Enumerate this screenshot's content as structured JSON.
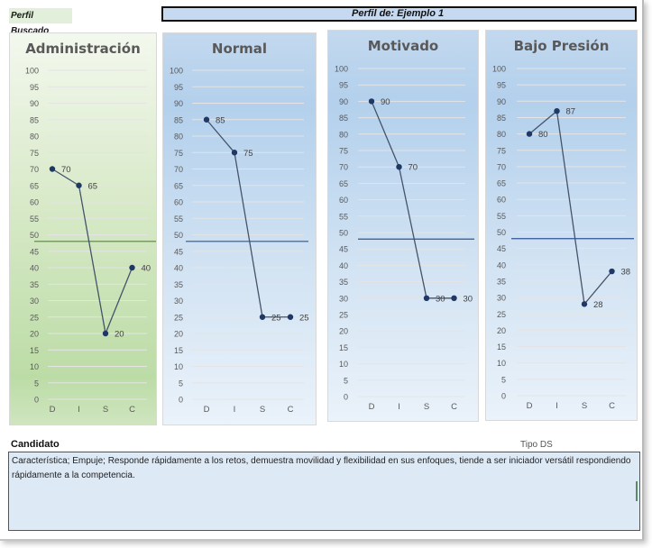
{
  "header": {
    "perfil_buscado": "Perfil Buscado",
    "perfil_de": "Perfil de: Ejemplo 1"
  },
  "colors": {
    "series": "#1f3864",
    "line": "#44546a",
    "ref_green": "#4e8a2c",
    "ref_blue": "#2f5597",
    "grid": "#e4e4e4",
    "tick": "#595959"
  },
  "chart_data": [
    {
      "type": "line",
      "title": "Administración",
      "categories": [
        "D",
        "I",
        "S",
        "C"
      ],
      "values": [
        70,
        65,
        20,
        40
      ],
      "data_labels": [
        "70",
        "65",
        "20",
        "40"
      ],
      "ylim": [
        0,
        100
      ],
      "yticks": [
        "0",
        "5",
        "10",
        "15",
        "20",
        "25",
        "30",
        "35",
        "40",
        "45",
        "50",
        "55",
        "60",
        "65",
        "70",
        "75",
        "80",
        "85",
        "90",
        "95",
        "100"
      ],
      "reference_line": 48,
      "theme": "green",
      "grid": true
    },
    {
      "type": "line",
      "title": "Normal",
      "categories": [
        "D",
        "I",
        "S",
        "C"
      ],
      "values": [
        85,
        75,
        25,
        25
      ],
      "data_labels": [
        "85",
        "75",
        "25",
        "25"
      ],
      "ylim": [
        0,
        100
      ],
      "yticks": [
        "0",
        "5",
        "10",
        "15",
        "20",
        "25",
        "30",
        "35",
        "40",
        "45",
        "50",
        "55",
        "60",
        "65",
        "70",
        "75",
        "80",
        "85",
        "90",
        "95",
        "100"
      ],
      "reference_line": 48,
      "theme": "blue",
      "grid": true
    },
    {
      "type": "line",
      "title": "Motivado",
      "categories": [
        "D",
        "I",
        "S",
        "C"
      ],
      "values": [
        90,
        70,
        30,
        30
      ],
      "data_labels": [
        "90",
        "70",
        "30",
        "30"
      ],
      "ylim": [
        0,
        100
      ],
      "yticks": [
        "0",
        "5",
        "10",
        "15",
        "20",
        "25",
        "30",
        "35",
        "40",
        "45",
        "50",
        "55",
        "60",
        "65",
        "70",
        "75",
        "80",
        "85",
        "90",
        "95",
        "100"
      ],
      "reference_line": 48,
      "theme": "blue",
      "grid": true
    },
    {
      "type": "line",
      "title": "Bajo Presión",
      "categories": [
        "D",
        "I",
        "S",
        "C"
      ],
      "values": [
        80,
        87,
        28,
        38
      ],
      "data_labels": [
        "80",
        "87",
        "28",
        "38"
      ],
      "ylim": [
        0,
        100
      ],
      "yticks": [
        "0",
        "5",
        "10",
        "15",
        "20",
        "25",
        "30",
        "35",
        "40",
        "45",
        "50",
        "55",
        "60",
        "65",
        "70",
        "75",
        "80",
        "85",
        "90",
        "95",
        "100"
      ],
      "reference_line": 48,
      "theme": "blue",
      "grid": true
    }
  ],
  "candidato": {
    "label": "Candidato",
    "tipo": "Tipo DS",
    "description": "Característica; Empuje; Responde rápidamente a los retos, demuestra movilidad y flexibilidad en sus enfoques, tiende a ser iniciador versátil respondiendo rápidamente a la competencia."
  }
}
